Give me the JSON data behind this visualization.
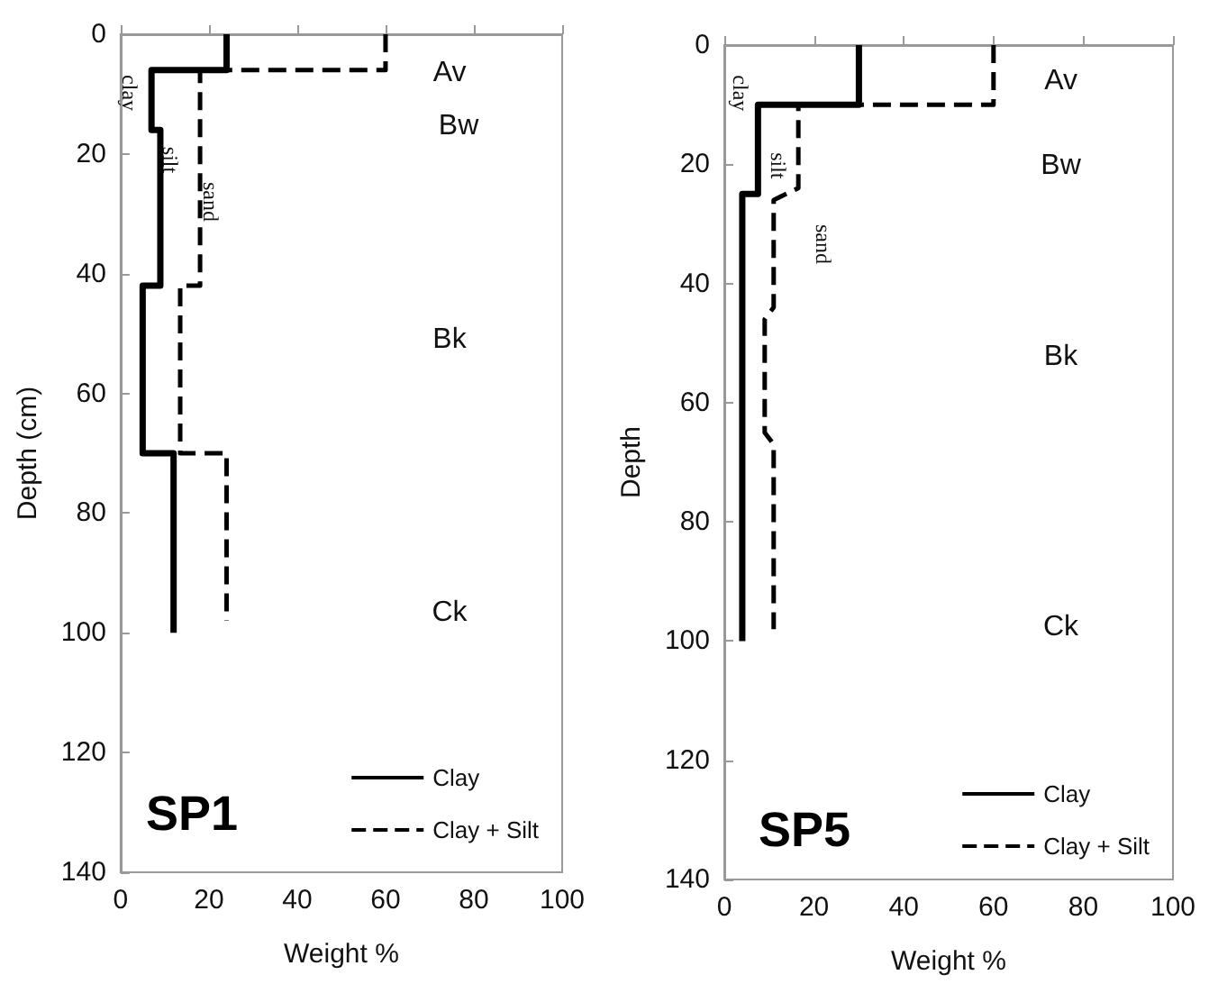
{
  "chart_data": [
    {
      "type": "line",
      "title": "SP1",
      "xlabel": "Weight %",
      "ylabel": "Depth (cm)",
      "xlim": [
        0,
        100
      ],
      "xticks": [
        0,
        20,
        40,
        60,
        80,
        100
      ],
      "ylim": [
        140,
        0
      ],
      "yticks": [
        0,
        20,
        40,
        60,
        80,
        100,
        120,
        140
      ],
      "grid": false,
      "legend": "bottom right",
      "marker": "none",
      "series": [
        {
          "name": "Clay",
          "color": "#000000",
          "line_style": "solid",
          "x": [
            24,
            24,
            7,
            7,
            9,
            9,
            5,
            5,
            12,
            12
          ],
          "values": [
            0,
            6,
            6,
            16,
            16,
            42,
            42,
            70,
            70,
            100
          ]
        },
        {
          "name": "Clay + Silt",
          "color": "#000000",
          "line_style": "dashed",
          "x": [
            60,
            60,
            18,
            18,
            13.5,
            13.5,
            24,
            24
          ],
          "values": [
            0,
            6,
            6,
            42,
            42,
            70,
            70,
            98
          ]
        }
      ],
      "annotations": [
        "Av",
        "Bw",
        "Bk",
        "Ck",
        "clay",
        "silt",
        "sand"
      ]
    },
    {
      "type": "line",
      "title": "SP5",
      "xlabel": "Weight %",
      "ylabel": "Depth",
      "xlim": [
        0,
        100
      ],
      "xticks": [
        0,
        20,
        40,
        60,
        80,
        100
      ],
      "ylim": [
        140,
        0
      ],
      "yticks": [
        0,
        20,
        40,
        60,
        80,
        100,
        120,
        140
      ],
      "grid": false,
      "legend": "bottom right",
      "marker": "none",
      "series": [
        {
          "name": "Clay",
          "color": "#000000",
          "line_style": "solid",
          "x": [
            30,
            30,
            7.5,
            7.5,
            4,
            4
          ],
          "values": [
            0,
            10,
            10,
            25,
            25,
            100
          ]
        },
        {
          "name": "Clay + Silt",
          "color": "#000000",
          "line_style": "dashed",
          "x": [
            60,
            60,
            16.5,
            16.5,
            11,
            11,
            9,
            9,
            11,
            11
          ],
          "values": [
            0,
            10,
            10,
            24,
            26,
            44,
            46,
            65,
            67,
            98
          ]
        }
      ],
      "annotations": [
        "Av",
        "Bw",
        "Bk",
        "Ck",
        "clay",
        "silt",
        "sand"
      ]
    }
  ]
}
